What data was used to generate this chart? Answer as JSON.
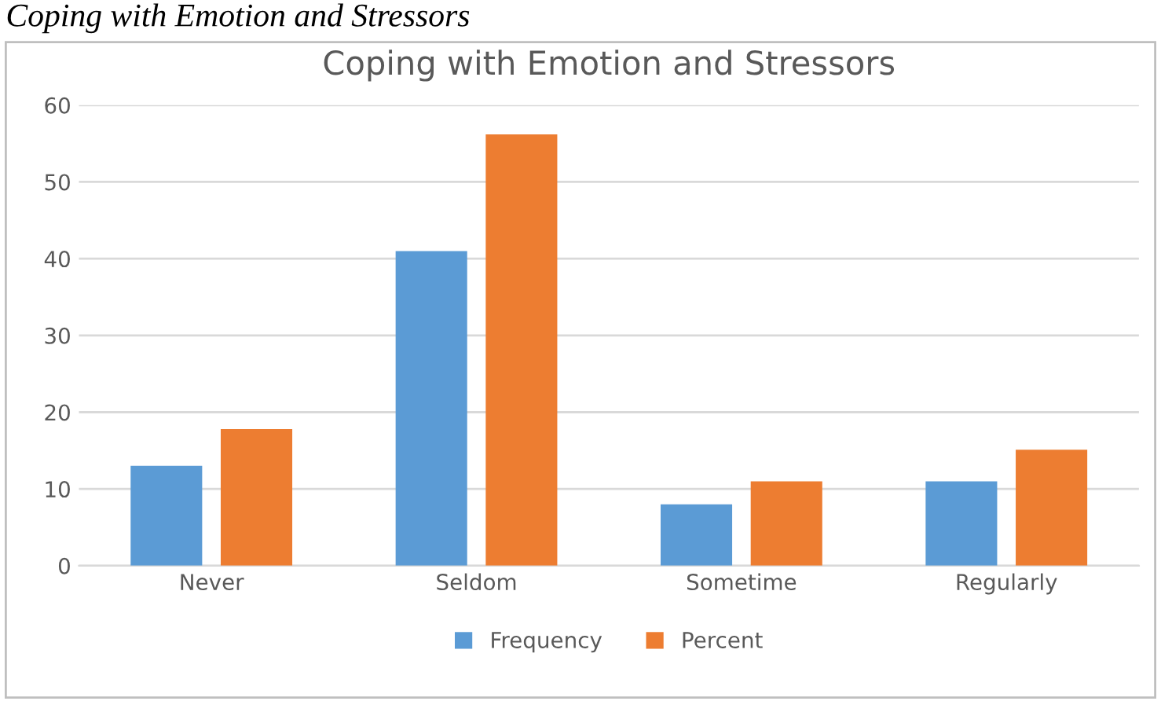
{
  "chart_data": {
    "type": "bar",
    "title": "Coping with Emotion and Stressors",
    "annotations": [
      "Coping with Emotion and Stressors"
    ],
    "categories": [
      "Never",
      "Seldom",
      "Sometime",
      "Regularly"
    ],
    "series": [
      {
        "name": "Frequency",
        "color": "#5b9bd5",
        "values": [
          13,
          41,
          8,
          11
        ]
      },
      {
        "name": "Percent",
        "color": "#ed7d31",
        "values": [
          17.8,
          56.2,
          11,
          15.1
        ]
      }
    ],
    "ylim": [
      0,
      60
    ],
    "yticks": [
      0,
      10,
      20,
      30,
      40,
      50,
      60
    ],
    "grid": "y",
    "legend": "bottom"
  }
}
